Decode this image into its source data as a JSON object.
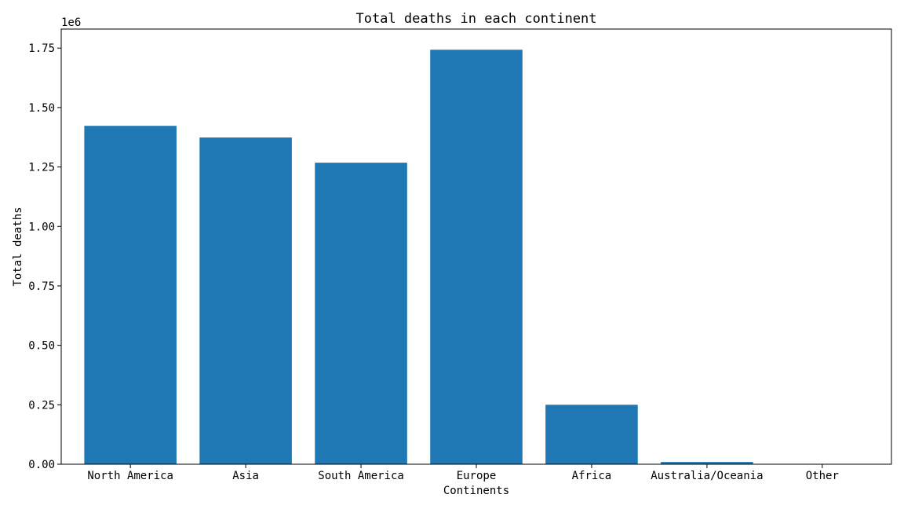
{
  "chart_data": {
    "type": "bar",
    "title": "Total deaths in each continent",
    "xlabel": "Continents",
    "ylabel": "Total deaths",
    "y_offset_label": "1e6",
    "categories": [
      "North America",
      "Asia",
      "South America",
      "Europe",
      "Africa",
      "Australia/Oceania",
      "Other"
    ],
    "values": [
      1423000,
      1374000,
      1268000,
      1743000,
      250000,
      9500,
      0
    ],
    "ylim": [
      0,
      1830000
    ],
    "yticks": [
      0,
      250000,
      500000,
      750000,
      1000000,
      1250000,
      1500000,
      1750000
    ],
    "ytick_labels": [
      "0.00",
      "0.25",
      "0.50",
      "0.75",
      "1.00",
      "1.25",
      "1.50",
      "1.75"
    ],
    "bar_color": "#1f77b4",
    "grid": false,
    "legend": "none"
  }
}
